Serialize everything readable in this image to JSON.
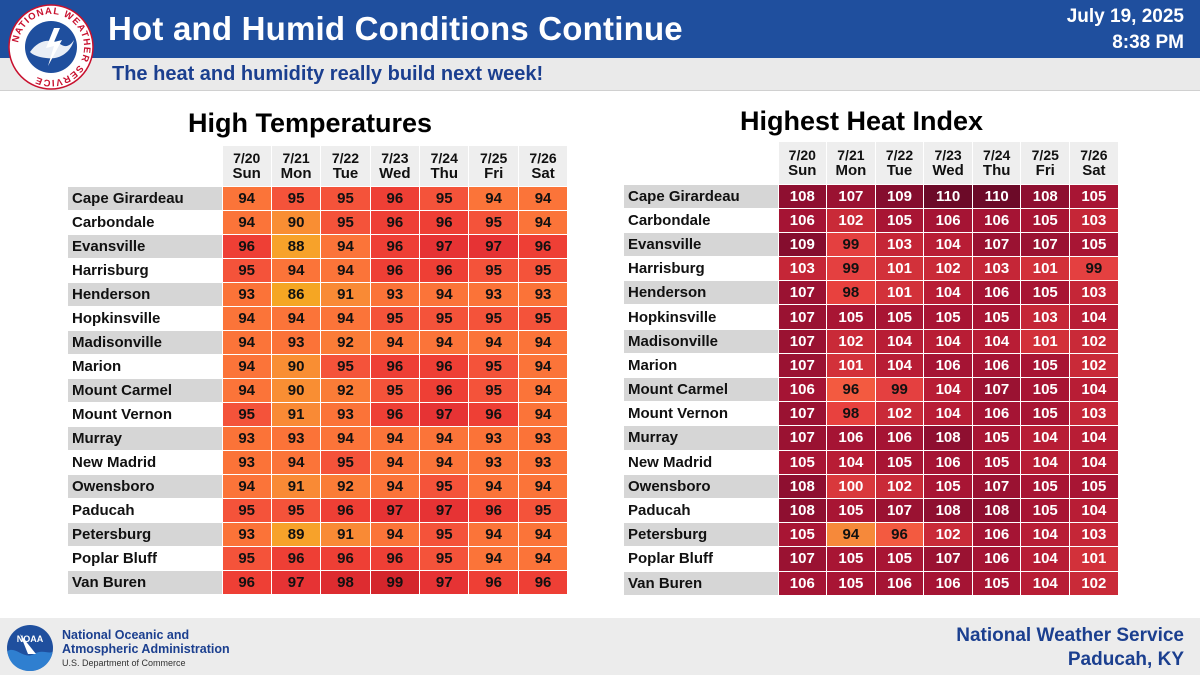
{
  "header": {
    "title": "Hot and Humid Conditions Continue",
    "subtitle": "The heat and humidity really build next week!",
    "date": "July 19, 2025",
    "time": "8:38 PM",
    "logo_text": "NATIONAL WEATHER SERVICE"
  },
  "footer": {
    "noaa_line1": "National Oceanic and",
    "noaa_line2": "Atmospheric Administration",
    "noaa_line3": "U.S. Department of Commerce",
    "noaa_logo_text": "NOAA",
    "office_line1": "National Weather Service",
    "office_line2": "Paducah, KY"
  },
  "colors": {
    "header_blue": "#1f4f9e",
    "temp_scale": {
      "86": "#f5a623",
      "88": "#f7a22a",
      "89": "#f7a22a",
      "90": "#f98e33",
      "91": "#f98a35",
      "92": "#fa7c37",
      "93": "#fb7338",
      "94": "#fb7439",
      "95": "#f4533a",
      "96": "#ee3f35",
      "97": "#e63334",
      "98": "#dd2c30",
      "99": "#d4262c"
    },
    "heat_scale": {
      "94": "#f6893a",
      "96": "#f35a40",
      "98": "#e8413e",
      "99": "#e44040",
      "100": "#d9383c",
      "101": "#d2313a",
      "102": "#c92a38",
      "103": "#c52637",
      "104": "#b81d35",
      "105": "#a81534",
      "106": "#a51434",
      "107": "#9a1232",
      "108": "#8e0f30",
      "109": "#850d2e",
      "110": "#6c0a28"
    }
  },
  "chart_data": [
    {
      "type": "table",
      "title": "High Temperatures",
      "dates": [
        "7/20",
        "7/21",
        "7/22",
        "7/23",
        "7/24",
        "7/25",
        "7/26"
      ],
      "days": [
        "Sun",
        "Mon",
        "Tue",
        "Wed",
        "Thu",
        "Fri",
        "Sat"
      ],
      "rows": [
        {
          "name": "Cape Girardeau",
          "values": [
            94,
            95,
            95,
            96,
            95,
            94,
            94
          ]
        },
        {
          "name": "Carbondale",
          "values": [
            94,
            90,
            95,
            96,
            96,
            95,
            94
          ]
        },
        {
          "name": "Evansville",
          "values": [
            96,
            88,
            94,
            96,
            97,
            97,
            96
          ]
        },
        {
          "name": "Harrisburg",
          "values": [
            95,
            94,
            94,
            96,
            96,
            95,
            95
          ]
        },
        {
          "name": "Henderson",
          "values": [
            93,
            86,
            91,
            93,
            94,
            93,
            93
          ]
        },
        {
          "name": "Hopkinsville",
          "values": [
            94,
            94,
            94,
            95,
            95,
            95,
            95
          ]
        },
        {
          "name": "Madisonville",
          "values": [
            94,
            93,
            92,
            94,
            94,
            94,
            94
          ]
        },
        {
          "name": "Marion",
          "values": [
            94,
            90,
            95,
            96,
            96,
            95,
            94
          ]
        },
        {
          "name": "Mount Carmel",
          "values": [
            94,
            90,
            92,
            95,
            96,
            95,
            94
          ]
        },
        {
          "name": "Mount Vernon",
          "values": [
            95,
            91,
            93,
            96,
            97,
            96,
            94
          ]
        },
        {
          "name": "Murray",
          "values": [
            93,
            93,
            94,
            94,
            94,
            93,
            93
          ]
        },
        {
          "name": "New Madrid",
          "values": [
            93,
            94,
            95,
            94,
            94,
            93,
            93
          ]
        },
        {
          "name": "Owensboro",
          "values": [
            94,
            91,
            92,
            94,
            95,
            94,
            94
          ]
        },
        {
          "name": "Paducah",
          "values": [
            95,
            95,
            96,
            97,
            97,
            96,
            95
          ]
        },
        {
          "name": "Petersburg",
          "values": [
            93,
            89,
            91,
            94,
            95,
            94,
            94
          ]
        },
        {
          "name": "Poplar Bluff",
          "values": [
            95,
            96,
            96,
            96,
            95,
            94,
            94
          ]
        },
        {
          "name": "Van Buren",
          "values": [
            96,
            97,
            98,
            99,
            97,
            96,
            96
          ]
        }
      ]
    },
    {
      "type": "table",
      "title": "Highest Heat Index",
      "dates": [
        "7/20",
        "7/21",
        "7/22",
        "7/23",
        "7/24",
        "7/25",
        "7/26"
      ],
      "days": [
        "Sun",
        "Mon",
        "Tue",
        "Wed",
        "Thu",
        "Fri",
        "Sat"
      ],
      "rows": [
        {
          "name": "Cape Girardeau",
          "values": [
            108,
            107,
            109,
            110,
            110,
            108,
            105
          ]
        },
        {
          "name": "Carbondale",
          "values": [
            106,
            102,
            105,
            106,
            106,
            105,
            103
          ]
        },
        {
          "name": "Evansville",
          "values": [
            109,
            99,
            103,
            104,
            107,
            107,
            105
          ]
        },
        {
          "name": "Harrisburg",
          "values": [
            103,
            99,
            101,
            102,
            103,
            101,
            99
          ]
        },
        {
          "name": "Henderson",
          "values": [
            107,
            98,
            101,
            104,
            106,
            105,
            103
          ]
        },
        {
          "name": "Hopkinsville",
          "values": [
            107,
            105,
            105,
            105,
            105,
            103,
            104
          ]
        },
        {
          "name": "Madisonville",
          "values": [
            107,
            102,
            104,
            104,
            104,
            101,
            102
          ]
        },
        {
          "name": "Marion",
          "values": [
            107,
            101,
            104,
            106,
            106,
            105,
            102
          ]
        },
        {
          "name": "Mount Carmel",
          "values": [
            106,
            96,
            99,
            104,
            107,
            105,
            104
          ]
        },
        {
          "name": "Mount Vernon",
          "values": [
            107,
            98,
            102,
            104,
            106,
            105,
            103
          ]
        },
        {
          "name": "Murray",
          "values": [
            107,
            106,
            106,
            108,
            105,
            104,
            104
          ]
        },
        {
          "name": "New Madrid",
          "values": [
            105,
            104,
            105,
            106,
            105,
            104,
            104
          ]
        },
        {
          "name": "Owensboro",
          "values": [
            108,
            100,
            102,
            105,
            107,
            105,
            105
          ]
        },
        {
          "name": "Paducah",
          "values": [
            108,
            105,
            107,
            108,
            108,
            105,
            104
          ]
        },
        {
          "name": "Petersburg",
          "values": [
            105,
            94,
            96,
            102,
            106,
            104,
            103
          ]
        },
        {
          "name": "Poplar Bluff",
          "values": [
            107,
            105,
            105,
            107,
            106,
            104,
            101
          ]
        },
        {
          "name": "Van Buren",
          "values": [
            106,
            105,
            106,
            106,
            105,
            104,
            102
          ]
        }
      ]
    }
  ]
}
